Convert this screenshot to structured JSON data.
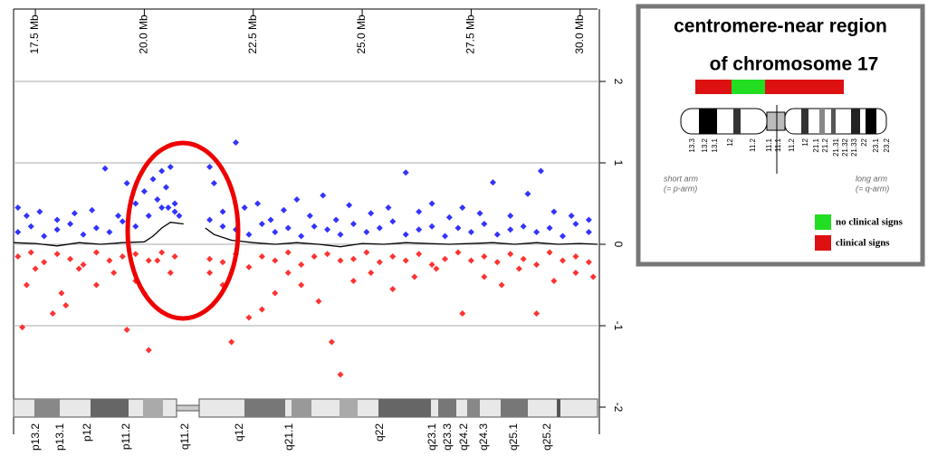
{
  "chart_data": {
    "type": "scatter",
    "xlim": [
      17,
      30.4
    ],
    "xticks": [
      {
        "value": 17.5,
        "label": "17.5 Mb"
      },
      {
        "value": 20,
        "label": "20.0 Mb"
      },
      {
        "value": 22.5,
        "label": "22.5 Mb"
      },
      {
        "value": 25,
        "label": "25.0 Mb"
      },
      {
        "value": 27.5,
        "label": "27.5 Mb"
      },
      {
        "value": 30,
        "label": "30.0 Mb"
      }
    ],
    "ylim": [
      -2.3,
      2.3
    ],
    "yticks": [
      2,
      1,
      0,
      -1,
      -2
    ],
    "grid": true,
    "series": [
      {
        "type": "scatter",
        "color": "#3333ff",
        "x": [
          17.1,
          17.4,
          17.7,
          18.0,
          18.3,
          18.6,
          18.9,
          19.2,
          19.5,
          19.8,
          20.1,
          20.4,
          20.7,
          21.5,
          21.8,
          22.1,
          22.4,
          22.7,
          23.0,
          23.3,
          23.6,
          23.9,
          24.2,
          24.5,
          24.8,
          25.1,
          25.4,
          25.7,
          26.0,
          26.3,
          26.6,
          26.9,
          27.2,
          27.5,
          27.8,
          28.1,
          28.4,
          28.7,
          29.0,
          29.3,
          29.6,
          29.9,
          30.2
        ],
        "values": [
          0.15,
          0.22,
          0.1,
          0.18,
          0.25,
          0.12,
          0.2,
          0.15,
          0.28,
          0.22,
          0.35,
          0.45,
          0.5,
          0.3,
          0.22,
          0.18,
          0.12,
          0.25,
          0.15,
          0.2,
          0.1,
          0.22,
          0.18,
          0.12,
          0.25,
          0.15,
          0.2,
          0.28,
          0.12,
          0.18,
          0.22,
          0.1,
          0.2,
          0.15,
          0.25,
          0.12,
          0.18,
          0.22,
          0.15,
          0.2,
          0.1,
          0.25,
          0.15
        ]
      },
      {
        "type": "scatter",
        "color": "#3333ff",
        "x": [
          17.1,
          17.3,
          17.6,
          18.0,
          18.4,
          18.8,
          19.1,
          19.4,
          19.6,
          19.8,
          20.0,
          20.2,
          20.3,
          20.4,
          20.5,
          20.55,
          20.6,
          20.7,
          20.8,
          21.5,
          21.6,
          21.8,
          22.1,
          22.3,
          22.6,
          22.9,
          23.2,
          23.5,
          23.8,
          24.1,
          24.4,
          24.7,
          25.2,
          25.6,
          26.0,
          26.3,
          26.6,
          27.0,
          27.3,
          27.7,
          28.0,
          28.4,
          28.8,
          29.1,
          29.4,
          29.8,
          30.2
        ],
        "values": [
          0.45,
          0.35,
          0.4,
          0.3,
          0.38,
          0.42,
          0.93,
          0.35,
          0.75,
          0.5,
          0.65,
          0.8,
          0.55,
          0.9,
          0.7,
          0.45,
          0.95,
          0.4,
          0.35,
          0.95,
          0.75,
          0.4,
          1.25,
          0.45,
          0.5,
          0.3,
          0.42,
          0.55,
          0.35,
          0.6,
          0.3,
          0.48,
          0.38,
          0.45,
          0.88,
          0.4,
          0.5,
          0.33,
          0.45,
          0.38,
          0.76,
          0.35,
          0.62,
          0.9,
          0.4,
          0.35,
          0.3
        ]
      },
      {
        "type": "scatter",
        "color": "#ff3333",
        "x": [
          17.1,
          17.4,
          17.7,
          18.0,
          18.3,
          18.6,
          18.9,
          19.2,
          19.5,
          19.8,
          20.1,
          20.4,
          20.7,
          21.5,
          21.8,
          22.1,
          22.4,
          22.7,
          23.0,
          23.3,
          23.6,
          23.9,
          24.2,
          24.5,
          24.8,
          25.1,
          25.4,
          25.7,
          26.0,
          26.3,
          26.6,
          26.9,
          27.2,
          27.5,
          27.8,
          28.1,
          28.4,
          28.7,
          29.0,
          29.3,
          29.6,
          29.9,
          30.2
        ],
        "values": [
          -0.15,
          -0.1,
          -0.22,
          -0.12,
          -0.18,
          -0.25,
          -0.1,
          -0.2,
          -0.15,
          -0.12,
          -0.2,
          -0.1,
          -0.15,
          -0.18,
          -0.22,
          -0.12,
          -0.28,
          -0.15,
          -0.2,
          -0.1,
          -0.25,
          -0.15,
          -0.12,
          -0.2,
          -0.18,
          -0.1,
          -0.22,
          -0.15,
          -0.2,
          -0.12,
          -0.25,
          -0.18,
          -0.1,
          -0.2,
          -0.15,
          -0.22,
          -0.12,
          -0.18,
          -0.25,
          -0.1,
          -0.2,
          -0.15,
          -0.22
        ]
      },
      {
        "type": "scatter",
        "color": "#ff3333",
        "x": [
          17.3,
          17.2,
          17.5,
          17.9,
          18.1,
          18.2,
          18.5,
          18.9,
          19.3,
          19.6,
          19.8,
          20.0,
          20.1,
          20.3,
          20.6,
          21.5,
          21.8,
          22.0,
          22.4,
          22.7,
          23.0,
          23.3,
          23.6,
          24.0,
          24.3,
          24.5,
          24.8,
          25.2,
          25.7,
          26.2,
          26.7,
          27.3,
          27.8,
          28.2,
          28.6,
          29.0,
          29.4,
          29.9,
          30.3
        ],
        "values": [
          -0.5,
          -1.02,
          -0.3,
          -0.85,
          -0.6,
          -0.75,
          -0.3,
          -0.5,
          -0.35,
          -1.05,
          -0.45,
          -0.6,
          -1.3,
          -0.2,
          -0.35,
          -0.35,
          -0.5,
          -1.2,
          -0.9,
          -0.8,
          -0.6,
          -0.35,
          -0.5,
          -0.7,
          -1.2,
          -1.6,
          -0.45,
          -0.35,
          -0.55,
          -0.4,
          -0.3,
          -0.85,
          -0.4,
          -0.5,
          -0.3,
          -0.85,
          -0.45,
          -0.35,
          -0.4
        ]
      },
      {
        "type": "line",
        "color": "#000000",
        "x": [
          17,
          17.5,
          18,
          18.5,
          19,
          19.5,
          20,
          20.2,
          20.4,
          20.6,
          20.9,
          21.1,
          21.4,
          21.6,
          22,
          22.5,
          23,
          23.5,
          24,
          24.5,
          25,
          25.5,
          26,
          26.5,
          27,
          27.5,
          28,
          28.5,
          29,
          29.5,
          30,
          30.4
        ],
        "values": [
          0.02,
          0.01,
          -0.02,
          0.02,
          0,
          0.02,
          0.03,
          0.1,
          0.2,
          0.27,
          0.25,
          null,
          0.2,
          0.12,
          0.05,
          0.02,
          0,
          0.02,
          0,
          -0.03,
          0.01,
          0,
          0.02,
          0.01,
          0,
          0.01,
          0.02,
          0,
          0.02,
          0,
          0.01,
          0
        ]
      }
    ],
    "band_labels": [
      "p13.2",
      "p13.1",
      "p12",
      "p11.2",
      "q11.2",
      "q12",
      "q21.1",
      "q22",
      "q23.1",
      "q23.3",
      "q24.2",
      "q24.3",
      "q25.1",
      "q25.2"
    ]
  },
  "inset": {
    "title_lines": [
      "centromere-near region",
      "of chromosome 17"
    ],
    "band_labels": [
      "13.3",
      "13.2",
      "13.1",
      "12",
      "11.2",
      "11.1",
      "11.1",
      "11.2",
      "12",
      "21.1",
      "21.2",
      "21.31",
      "21.32",
      "21.33",
      "22",
      "23.1",
      "23.2"
    ],
    "short_arm": [
      "short arm",
      "(= p-arm)"
    ],
    "long_arm": [
      "long arm",
      "(= q-arm)"
    ],
    "legend": [
      {
        "label": "no clinical signs",
        "color": "#22dd22"
      },
      {
        "label": "clinical signs",
        "color": "#dd1111"
      }
    ]
  }
}
